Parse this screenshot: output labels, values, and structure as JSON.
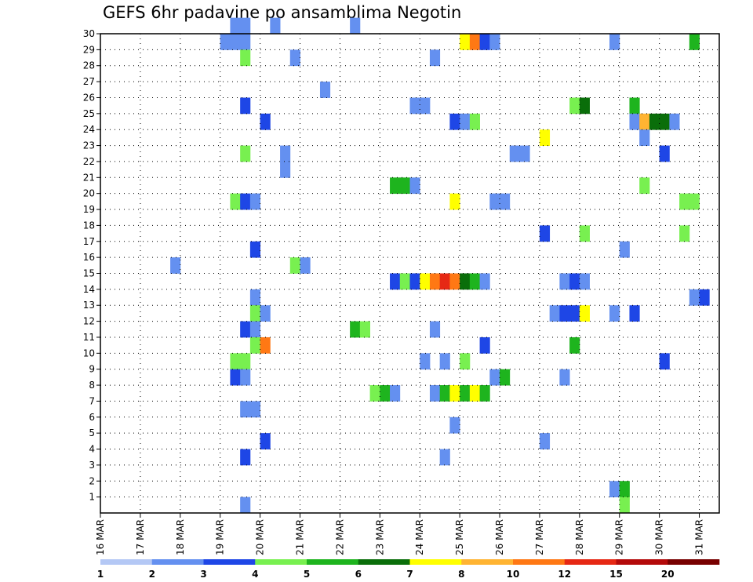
{
  "chart_data": {
    "type": "heatmap",
    "title": "GEFS 6hr padavine po ansamblima Negotin",
    "xlabel": "",
    "ylabel": "",
    "x_ticks": [
      "16 MAR",
      "17 MAR",
      "18 MAR",
      "19 MAR",
      "20 MAR",
      "21 MAR",
      "22 MAR",
      "23 MAR",
      "24 MAR",
      "25 MAR",
      "26 MAR",
      "27 MAR",
      "28 MAR",
      "29 MAR",
      "30 MAR",
      "31 MAR"
    ],
    "x_range": [
      0,
      62
    ],
    "x_unit": "6-hour steps from 16 MAR 00Z",
    "y_ticks": [
      1,
      2,
      3,
      4,
      5,
      6,
      7,
      8,
      9,
      10,
      11,
      12,
      13,
      14,
      15,
      16,
      17,
      18,
      19,
      20,
      21,
      22,
      23,
      24,
      25,
      26,
      27,
      28,
      29,
      30
    ],
    "y_range": [
      0,
      30
    ],
    "grid": true,
    "legend": {
      "placement": "bottom",
      "levels": [
        "1",
        "2",
        "3",
        "4",
        "5",
        "6",
        "7",
        "8",
        "10",
        "12",
        "15",
        "20"
      ],
      "colors": [
        "#b4c8f5",
        "#6490f0",
        "#1e46e6",
        "#78f050",
        "#1eb41e",
        "#0a6e0a",
        "#ffff00",
        "#ffb432",
        "#ff7814",
        "#e62814",
        "#b40a0a",
        "#780000"
      ]
    },
    "cells": [
      [
        13,
        30,
        1
      ],
      [
        14,
        30,
        1
      ],
      [
        17,
        30,
        1
      ],
      [
        25,
        30,
        1
      ],
      [
        12,
        29,
        1
      ],
      [
        13,
        29,
        1
      ],
      [
        14,
        29,
        1
      ],
      [
        36,
        29,
        6
      ],
      [
        37,
        29,
        8
      ],
      [
        38,
        29,
        2
      ],
      [
        39,
        29,
        1
      ],
      [
        51,
        29,
        1
      ],
      [
        59,
        29,
        4
      ],
      [
        14,
        28,
        3
      ],
      [
        19,
        28,
        1
      ],
      [
        33,
        28,
        1
      ],
      [
        22,
        26,
        1
      ],
      [
        14,
        25,
        2
      ],
      [
        31,
        25,
        1
      ],
      [
        32,
        25,
        1
      ],
      [
        47,
        25,
        3
      ],
      [
        48,
        25,
        5
      ],
      [
        53,
        25,
        4
      ],
      [
        16,
        24,
        2
      ],
      [
        35,
        24,
        2
      ],
      [
        36,
        24,
        1
      ],
      [
        37,
        24,
        3
      ],
      [
        53,
        24,
        1
      ],
      [
        54,
        24,
        7
      ],
      [
        55,
        24,
        5
      ],
      [
        56,
        24,
        5
      ],
      [
        57,
        24,
        1
      ],
      [
        44,
        23,
        6
      ],
      [
        54,
        23,
        1
      ],
      [
        14,
        22,
        3
      ],
      [
        18,
        22,
        1
      ],
      [
        41,
        22,
        1
      ],
      [
        42,
        22,
        1
      ],
      [
        56,
        22,
        2
      ],
      [
        18,
        21,
        1
      ],
      [
        29,
        20,
        4
      ],
      [
        30,
        20,
        4
      ],
      [
        31,
        20,
        1
      ],
      [
        54,
        20,
        3
      ],
      [
        13,
        19,
        3
      ],
      [
        14,
        19,
        2
      ],
      [
        15,
        19,
        1
      ],
      [
        35,
        19,
        6
      ],
      [
        39,
        19,
        1
      ],
      [
        40,
        19,
        1
      ],
      [
        58,
        19,
        3
      ],
      [
        59,
        19,
        3
      ],
      [
        44,
        17,
        2
      ],
      [
        48,
        17,
        3
      ],
      [
        58,
        17,
        3
      ],
      [
        15,
        16,
        2
      ],
      [
        52,
        16,
        1
      ],
      [
        7,
        15,
        1
      ],
      [
        19,
        15,
        3
      ],
      [
        20,
        15,
        1
      ],
      [
        29,
        14,
        2
      ],
      [
        30,
        14,
        3
      ],
      [
        31,
        14,
        2
      ],
      [
        32,
        14,
        6
      ],
      [
        33,
        14,
        8
      ],
      [
        34,
        14,
        9
      ],
      [
        35,
        14,
        8
      ],
      [
        36,
        14,
        5
      ],
      [
        37,
        14,
        4
      ],
      [
        38,
        14,
        1
      ],
      [
        46,
        14,
        1
      ],
      [
        47,
        14,
        2
      ],
      [
        48,
        14,
        1
      ],
      [
        15,
        13,
        1
      ],
      [
        59,
        13,
        1
      ],
      [
        60,
        13,
        2
      ],
      [
        15,
        12,
        3
      ],
      [
        16,
        12,
        1
      ],
      [
        45,
        12,
        1
      ],
      [
        46,
        12,
        2
      ],
      [
        47,
        12,
        2
      ],
      [
        48,
        12,
        6
      ],
      [
        51,
        12,
        1
      ],
      [
        53,
        12,
        2
      ],
      [
        14,
        11,
        2
      ],
      [
        15,
        11,
        1
      ],
      [
        25,
        11,
        4
      ],
      [
        26,
        11,
        3
      ],
      [
        33,
        11,
        1
      ],
      [
        15,
        10,
        3
      ],
      [
        16,
        10,
        8
      ],
      [
        38,
        10,
        2
      ],
      [
        47,
        10,
        4
      ],
      [
        13,
        9,
        3
      ],
      [
        14,
        9,
        3
      ],
      [
        32,
        9,
        1
      ],
      [
        34,
        9,
        1
      ],
      [
        36,
        9,
        3
      ],
      [
        56,
        9,
        2
      ],
      [
        13,
        8,
        2
      ],
      [
        14,
        8,
        1
      ],
      [
        39,
        8,
        1
      ],
      [
        40,
        8,
        4
      ],
      [
        46,
        8,
        1
      ],
      [
        27,
        7,
        3
      ],
      [
        28,
        7,
        4
      ],
      [
        29,
        7,
        1
      ],
      [
        33,
        7,
        1
      ],
      [
        34,
        7,
        4
      ],
      [
        35,
        7,
        6
      ],
      [
        36,
        7,
        4
      ],
      [
        37,
        7,
        6
      ],
      [
        38,
        7,
        4
      ],
      [
        14,
        6,
        1
      ],
      [
        15,
        6,
        1
      ],
      [
        35,
        5,
        1
      ],
      [
        16,
        4,
        2
      ],
      [
        44,
        4,
        1
      ],
      [
        14,
        3,
        2
      ],
      [
        34,
        3,
        1
      ],
      [
        51,
        1,
        1
      ],
      [
        52,
        1,
        4
      ],
      [
        52,
        0,
        3
      ],
      [
        14,
        0,
        1
      ]
    ]
  }
}
